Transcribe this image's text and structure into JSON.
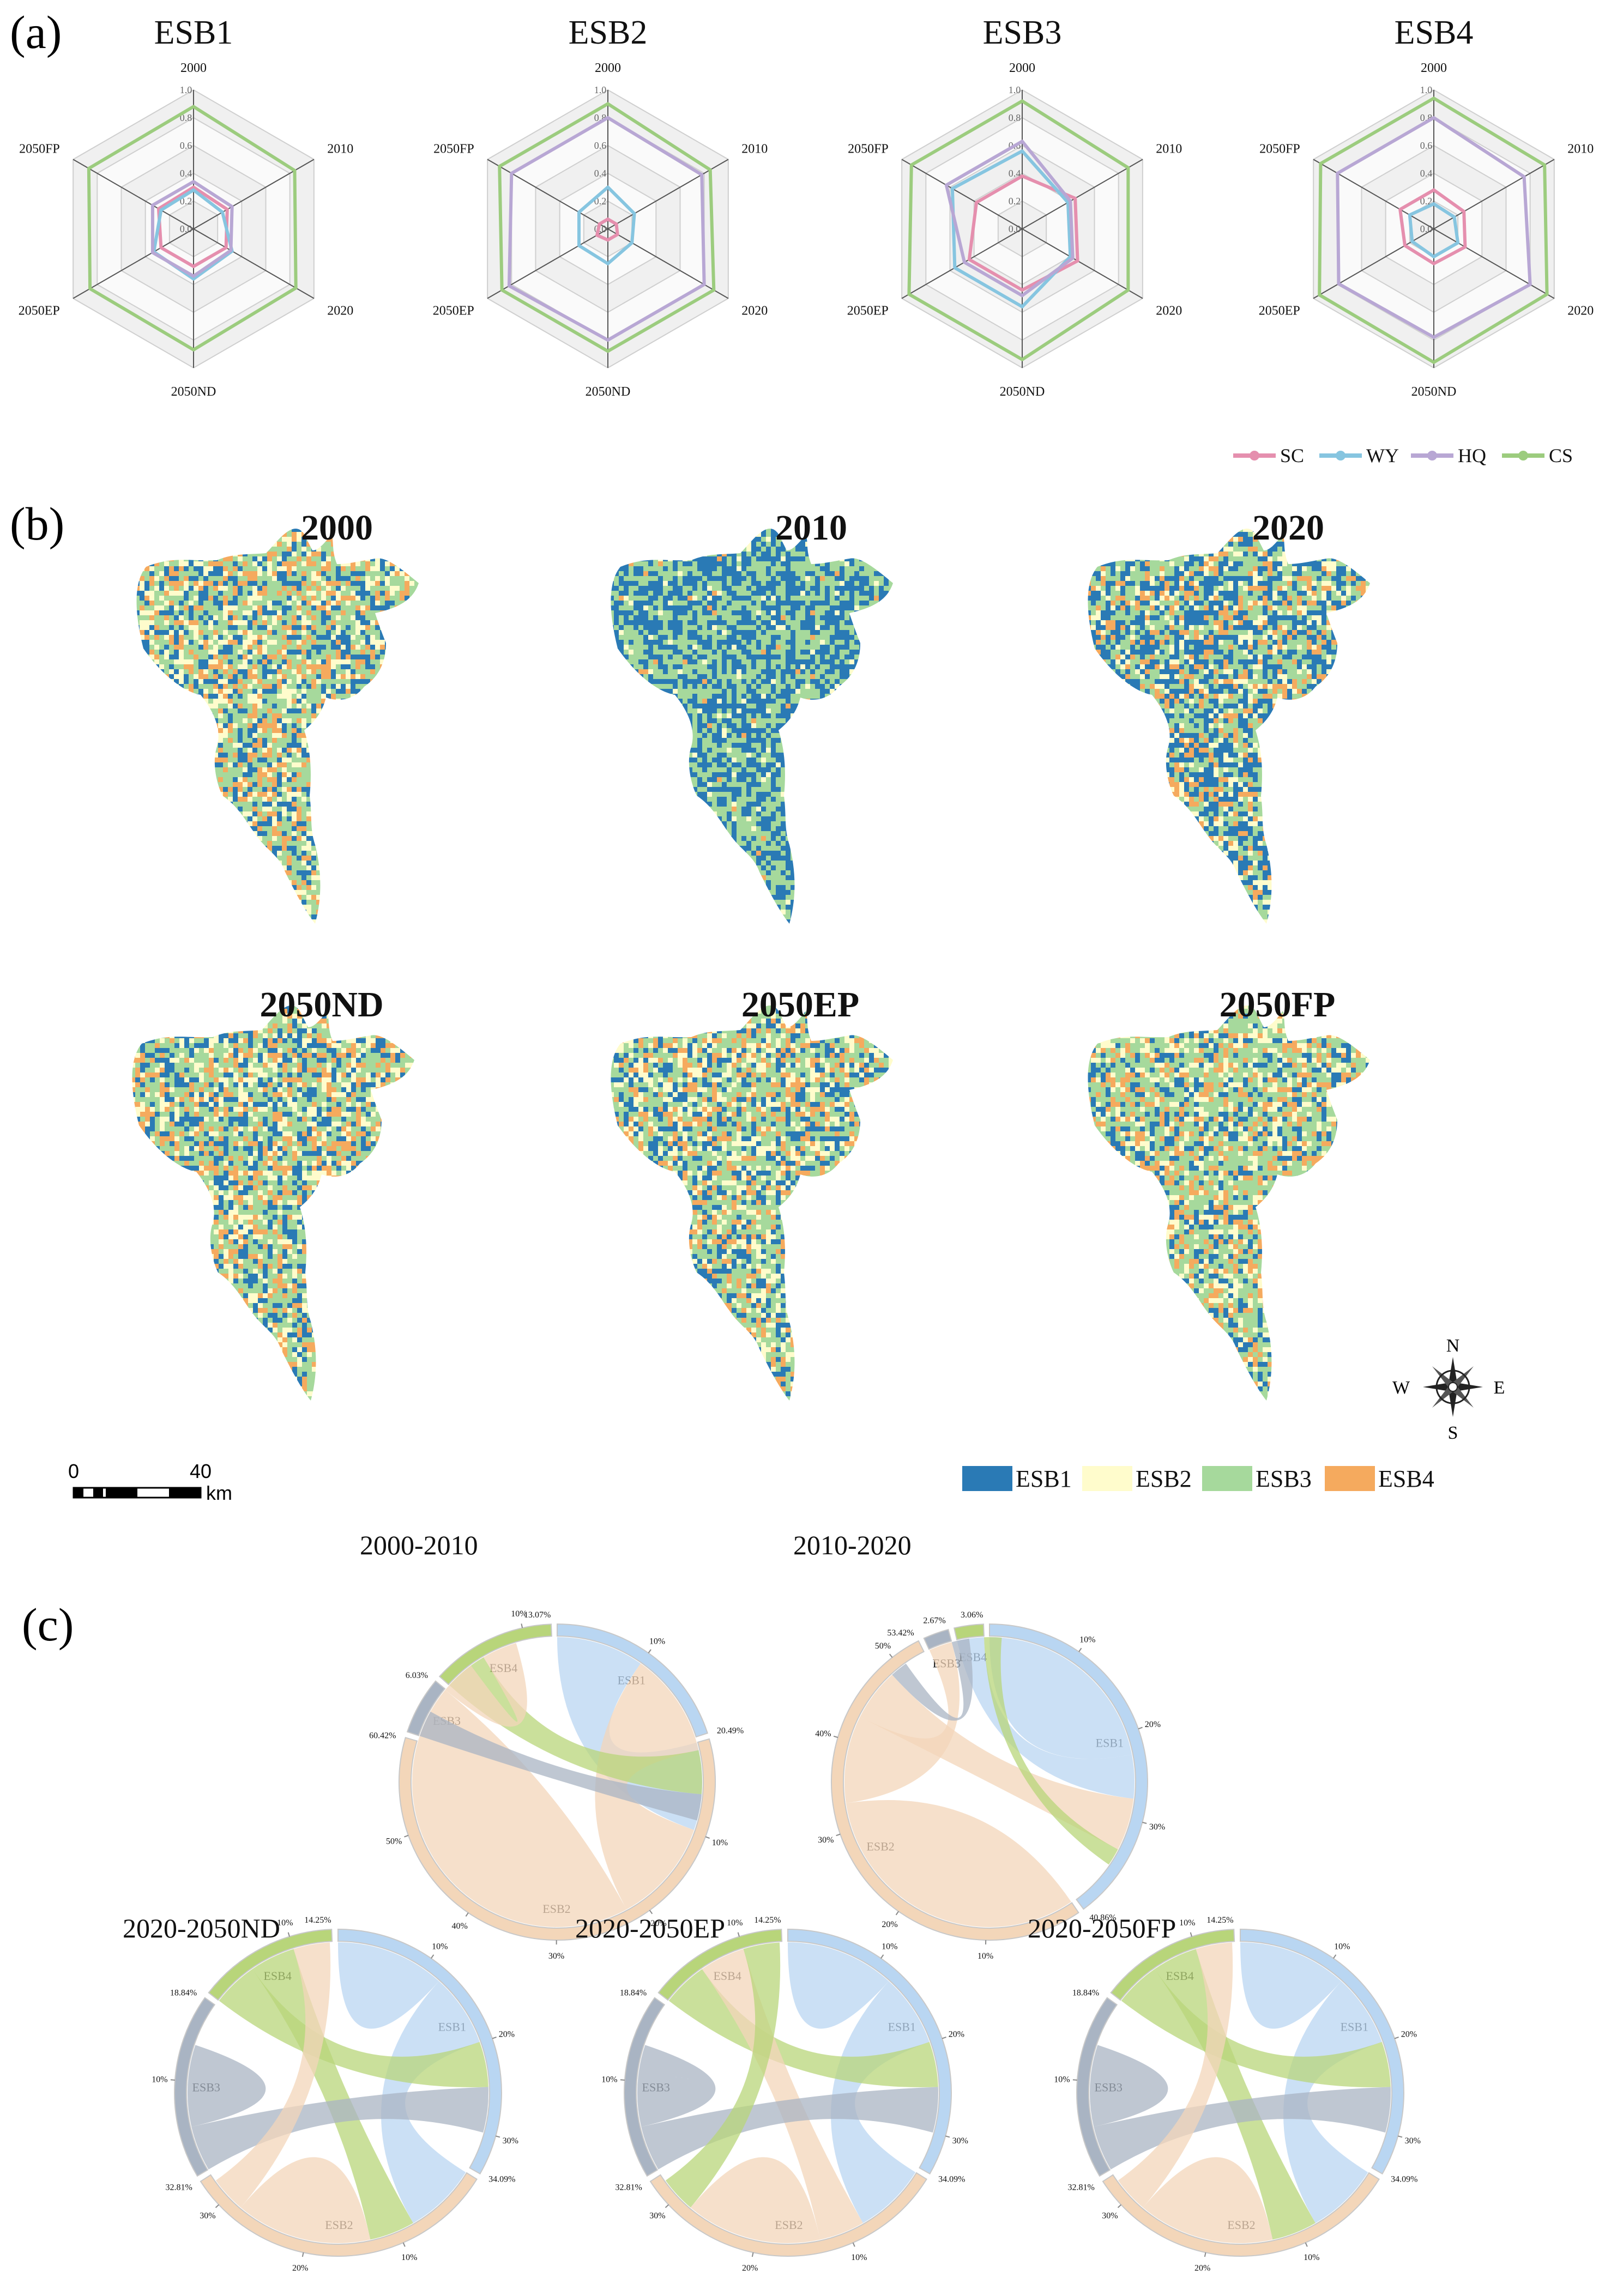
{
  "panel_labels": {
    "a": "(a)",
    "b": "(b)",
    "c": "(c)"
  },
  "colors": {
    "SC": "#e58fae",
    "WY": "#86c5e0",
    "HQ": "#b8a7d4",
    "CS": "#9ccc7e",
    "ESB1": "#2a7ab5",
    "ESB2": "#fffccc",
    "ESB3": "#a6d99c",
    "ESB4": "#f5aa5e",
    "chord_ESB1": "#b9d6f2",
    "chord_ESB2": "#f3d6b9",
    "chord_ESB3": "#a9b4c3",
    "chord_ESB4": "#b8d57a"
  },
  "radar_legend": [
    "SC",
    "WY",
    "HQ",
    "CS"
  ],
  "map_legend": [
    "ESB1",
    "ESB2",
    "ESB3",
    "ESB4"
  ],
  "compass": {
    "n": "N",
    "s": "S",
    "e": "E",
    "w": "W"
  },
  "scalebar": {
    "start": "0",
    "end": "40",
    "unit": "km"
  },
  "chart_data": [
    {
      "type": "radar",
      "panel": "(a)",
      "axes": [
        "2000",
        "2010",
        "2020",
        "2050ND",
        "2050EP",
        "2050FP"
      ],
      "rings": [
        "0.0",
        "0.2",
        "0.4",
        "0.6",
        "0.8",
        "1.0"
      ],
      "charts": [
        {
          "title": "ESB1",
          "series": [
            {
              "name": "SC",
              "values": [
                0.3,
                0.28,
                0.27,
                0.27,
                0.27,
                0.29
              ]
            },
            {
              "name": "WY",
              "values": [
                0.28,
                0.24,
                0.32,
                0.36,
                0.33,
                0.27
              ]
            },
            {
              "name": "HQ",
              "values": [
                0.34,
                0.32,
                0.31,
                0.34,
                0.34,
                0.34
              ]
            },
            {
              "name": "CS",
              "values": [
                0.88,
                0.84,
                0.85,
                0.87,
                0.86,
                0.87
              ]
            }
          ]
        },
        {
          "title": "ESB2",
          "series": [
            {
              "name": "SC",
              "values": [
                0.07,
                0.07,
                0.08,
                0.08,
                0.09,
                0.07
              ]
            },
            {
              "name": "WY",
              "values": [
                0.3,
                0.22,
                0.2,
                0.25,
                0.24,
                0.24
              ]
            },
            {
              "name": "HQ",
              "values": [
                0.8,
                0.78,
                0.8,
                0.8,
                0.82,
                0.8
              ]
            },
            {
              "name": "CS",
              "values": [
                0.9,
                0.85,
                0.88,
                0.88,
                0.88,
                0.9
              ]
            }
          ]
        },
        {
          "title": "ESB3",
          "series": [
            {
              "name": "SC",
              "values": [
                0.38,
                0.44,
                0.46,
                0.44,
                0.44,
                0.38
              ]
            },
            {
              "name": "WY",
              "values": [
                0.56,
                0.38,
                0.4,
                0.56,
                0.56,
                0.58
              ]
            },
            {
              "name": "HQ",
              "values": [
                0.63,
                0.4,
                0.42,
                0.48,
                0.48,
                0.63
              ]
            },
            {
              "name": "CS",
              "values": [
                0.92,
                0.88,
                0.88,
                0.94,
                0.94,
                0.92
              ]
            }
          ]
        },
        {
          "title": "ESB4",
          "series": [
            {
              "name": "SC",
              "values": [
                0.28,
                0.25,
                0.26,
                0.25,
                0.24,
                0.28
              ]
            },
            {
              "name": "WY",
              "values": [
                0.18,
                0.17,
                0.2,
                0.2,
                0.18,
                0.2
              ]
            },
            {
              "name": "HQ",
              "values": [
                0.8,
                0.75,
                0.8,
                0.78,
                0.79,
                0.8
              ]
            },
            {
              "name": "CS",
              "values": [
                0.94,
                0.92,
                0.94,
                0.96,
                0.95,
                0.94
              ]
            }
          ]
        }
      ]
    },
    {
      "type": "heatmap",
      "panel": "(b)",
      "classes": [
        "ESB1",
        "ESB2",
        "ESB3",
        "ESB4"
      ],
      "maps": [
        {
          "title": "2000",
          "composition": [
            0.22,
            0.2,
            0.38,
            0.2
          ]
        },
        {
          "title": "2010",
          "composition": [
            0.48,
            0.04,
            0.46,
            0.02
          ]
        },
        {
          "title": "2020",
          "composition": [
            0.38,
            0.16,
            0.3,
            0.16
          ]
        },
        {
          "title": "2050ND",
          "composition": [
            0.22,
            0.2,
            0.38,
            0.2
          ]
        },
        {
          "title": "2050EP",
          "composition": [
            0.22,
            0.22,
            0.38,
            0.18
          ]
        },
        {
          "title": "2050FP",
          "composition": [
            0.2,
            0.2,
            0.4,
            0.2
          ]
        }
      ]
    },
    {
      "type": "chord",
      "panel": "(c)",
      "diagrams": [
        {
          "title": "2000-2010",
          "sectors": [
            {
              "name": "ESB1",
              "share": 0.2049,
              "label": "20.49%"
            },
            {
              "name": "ESB2",
              "share": 0.6042,
              "label": "60.42%"
            },
            {
              "name": "ESB3",
              "share": 0.0603,
              "label": "6.03%"
            },
            {
              "name": "ESB4",
              "share": 0.1307,
              "label": "13.07%"
            }
          ],
          "ticks": [
            {
              "sector": "ESB1",
              "frac": 0.49,
              "label": "10%"
            },
            {
              "sector": "ESB2",
              "frac": 0.17,
              "label": "10%"
            },
            {
              "sector": "ESB2",
              "frac": 0.33,
              "label": "20%"
            },
            {
              "sector": "ESB2",
              "frac": 0.5,
              "label": "30%"
            },
            {
              "sector": "ESB2",
              "frac": 0.66,
              "label": "40%"
            },
            {
              "sector": "ESB2",
              "frac": 0.83,
              "label": "50%"
            },
            {
              "sector": "ESB4",
              "frac": 0.77,
              "label": "10%"
            }
          ],
          "links": [
            {
              "from": "ESB1",
              "to": "ESB2",
              "value": 0.1
            },
            {
              "from": "ESB2",
              "to": "ESB1",
              "value": 0.12
            },
            {
              "from": "ESB2",
              "to": "ESB2",
              "value": 0.3
            },
            {
              "from": "ESB4",
              "to": "ESB1",
              "value": 0.05
            },
            {
              "from": "ESB3",
              "to": "ESB1",
              "value": 0.03
            },
            {
              "from": "ESB2",
              "to": "ESB4",
              "value": 0.04
            }
          ]
        },
        {
          "title": "2010-2020",
          "sectors": [
            {
              "name": "ESB1",
              "share": 0.4086,
              "label": "40.86%"
            },
            {
              "name": "ESB2",
              "share": 0.5342,
              "label": "53.42%"
            },
            {
              "name": "ESB3",
              "share": 0.0267,
              "label": "2.67%"
            },
            {
              "name": "ESB4",
              "share": 0.0306,
              "label": "3.06%"
            }
          ],
          "ticks": [
            {
              "sector": "ESB1",
              "frac": 0.24,
              "label": "10%"
            },
            {
              "sector": "ESB1",
              "frac": 0.49,
              "label": "20%"
            },
            {
              "sector": "ESB1",
              "frac": 0.73,
              "label": "30%"
            },
            {
              "sector": "ESB2",
              "frac": 0.19,
              "label": "10%"
            },
            {
              "sector": "ESB2",
              "frac": 0.37,
              "label": "20%"
            },
            {
              "sector": "ESB2",
              "frac": 0.56,
              "label": "30%"
            },
            {
              "sector": "ESB2",
              "frac": 0.75,
              "label": "40%"
            },
            {
              "sector": "ESB2",
              "frac": 0.94,
              "label": "50%"
            }
          ],
          "links": [
            {
              "from": "ESB1",
              "to": "ESB1",
              "value": 0.15
            },
            {
              "from": "ESB2",
              "to": "ESB2",
              "value": 0.22
            },
            {
              "from": "ESB2",
              "to": "ESB3",
              "value": 0.1
            },
            {
              "from": "ESB1",
              "to": "ESB4",
              "value": 0.05
            },
            {
              "from": "ESB2",
              "to": "ESB1",
              "value": 0.06
            },
            {
              "from": "ESB3",
              "to": "ESB2",
              "value": 0.02
            },
            {
              "from": "ESB4",
              "to": "ESB1",
              "value": 0.02
            }
          ]
        },
        {
          "title": "2020-2050ND",
          "sectors": [
            {
              "name": "ESB1",
              "share": 0.3409,
              "label": "34.09%"
            },
            {
              "name": "ESB2",
              "share": 0.3281,
              "label": "32.81%"
            },
            {
              "name": "ESB3",
              "share": 0.1884,
              "label": "18.84%"
            },
            {
              "name": "ESB4",
              "share": 0.1425,
              "label": "14.25%"
            }
          ],
          "ticks": [
            {
              "sector": "ESB1",
              "frac": 0.29,
              "label": "10%"
            },
            {
              "sector": "ESB1",
              "frac": 0.59,
              "label": "20%"
            },
            {
              "sector": "ESB1",
              "frac": 0.88,
              "label": "30%"
            },
            {
              "sector": "ESB2",
              "frac": 0.3,
              "label": "10%"
            },
            {
              "sector": "ESB2",
              "frac": 0.61,
              "label": "20%"
            },
            {
              "sector": "ESB2",
              "frac": 0.91,
              "label": "30%"
            },
            {
              "sector": "ESB3",
              "frac": 0.53,
              "label": "10%"
            },
            {
              "sector": "ESB4",
              "frac": 0.7,
              "label": "10%"
            }
          ],
          "links": [
            {
              "from": "ESB1",
              "to": "ESB1",
              "value": 0.08
            },
            {
              "from": "ESB1",
              "to": "ESB2",
              "value": 0.08
            },
            {
              "from": "ESB4",
              "to": "ESB1",
              "value": 0.05
            },
            {
              "from": "ESB4",
              "to": "ESB2",
              "value": 0.05
            },
            {
              "from": "ESB3",
              "to": "ESB1",
              "value": 0.05
            },
            {
              "from": "ESB2",
              "to": "ESB2",
              "value": 0.1
            },
            {
              "from": "ESB3",
              "to": "ESB3",
              "value": 0.06
            },
            {
              "from": "ESB2",
              "to": "ESB4",
              "value": 0.04
            }
          ]
        },
        {
          "title": "2020-2050EP",
          "sectors": [
            {
              "name": "ESB1",
              "share": 0.3409,
              "label": "34.09%"
            },
            {
              "name": "ESB2",
              "share": 0.3281,
              "label": "32.81%"
            },
            {
              "name": "ESB3",
              "share": 0.1884,
              "label": "18.84%"
            },
            {
              "name": "ESB4",
              "share": 0.1425,
              "label": "14.25%"
            }
          ],
          "ticks": [
            {
              "sector": "ESB1",
              "frac": 0.29,
              "label": "10%"
            },
            {
              "sector": "ESB1",
              "frac": 0.59,
              "label": "20%"
            },
            {
              "sector": "ESB1",
              "frac": 0.88,
              "label": "30%"
            },
            {
              "sector": "ESB2",
              "frac": 0.3,
              "label": "10%"
            },
            {
              "sector": "ESB2",
              "frac": 0.61,
              "label": "20%"
            },
            {
              "sector": "ESB2",
              "frac": 0.91,
              "label": "30%"
            },
            {
              "sector": "ESB3",
              "frac": 0.53,
              "label": "10%"
            },
            {
              "sector": "ESB4",
              "frac": 0.7,
              "label": "10%"
            }
          ],
          "links": [
            {
              "from": "ESB1",
              "to": "ESB1",
              "value": 0.08
            },
            {
              "from": "ESB1",
              "to": "ESB2",
              "value": 0.08
            },
            {
              "from": "ESB4",
              "to": "ESB1",
              "value": 0.05
            },
            {
              "from": "ESB2",
              "to": "ESB4",
              "value": 0.05
            },
            {
              "from": "ESB3",
              "to": "ESB1",
              "value": 0.05
            },
            {
              "from": "ESB2",
              "to": "ESB2",
              "value": 0.1
            },
            {
              "from": "ESB3",
              "to": "ESB3",
              "value": 0.06
            },
            {
              "from": "ESB4",
              "to": "ESB2",
              "value": 0.04
            }
          ]
        },
        {
          "title": "2020-2050FP",
          "sectors": [
            {
              "name": "ESB1",
              "share": 0.3409,
              "label": "34.09%"
            },
            {
              "name": "ESB2",
              "share": 0.3281,
              "label": "32.81%"
            },
            {
              "name": "ESB3",
              "share": 0.1884,
              "label": "18.84%"
            },
            {
              "name": "ESB4",
              "share": 0.1425,
              "label": "14.25%"
            }
          ],
          "ticks": [
            {
              "sector": "ESB1",
              "frac": 0.29,
              "label": "10%"
            },
            {
              "sector": "ESB1",
              "frac": 0.59,
              "label": "20%"
            },
            {
              "sector": "ESB1",
              "frac": 0.88,
              "label": "30%"
            },
            {
              "sector": "ESB2",
              "frac": 0.3,
              "label": "10%"
            },
            {
              "sector": "ESB2",
              "frac": 0.61,
              "label": "20%"
            },
            {
              "sector": "ESB2",
              "frac": 0.91,
              "label": "30%"
            },
            {
              "sector": "ESB3",
              "frac": 0.53,
              "label": "10%"
            },
            {
              "sector": "ESB4",
              "frac": 0.7,
              "label": "10%"
            }
          ],
          "links": [
            {
              "from": "ESB1",
              "to": "ESB1",
              "value": 0.08
            },
            {
              "from": "ESB1",
              "to": "ESB2",
              "value": 0.08
            },
            {
              "from": "ESB4",
              "to": "ESB1",
              "value": 0.05
            },
            {
              "from": "ESB4",
              "to": "ESB2",
              "value": 0.05
            },
            {
              "from": "ESB3",
              "to": "ESB1",
              "value": 0.05
            },
            {
              "from": "ESB2",
              "to": "ESB2",
              "value": 0.1
            },
            {
              "from": "ESB3",
              "to": "ESB3",
              "value": 0.06
            },
            {
              "from": "ESB2",
              "to": "ESB4",
              "value": 0.04
            }
          ]
        }
      ]
    }
  ]
}
